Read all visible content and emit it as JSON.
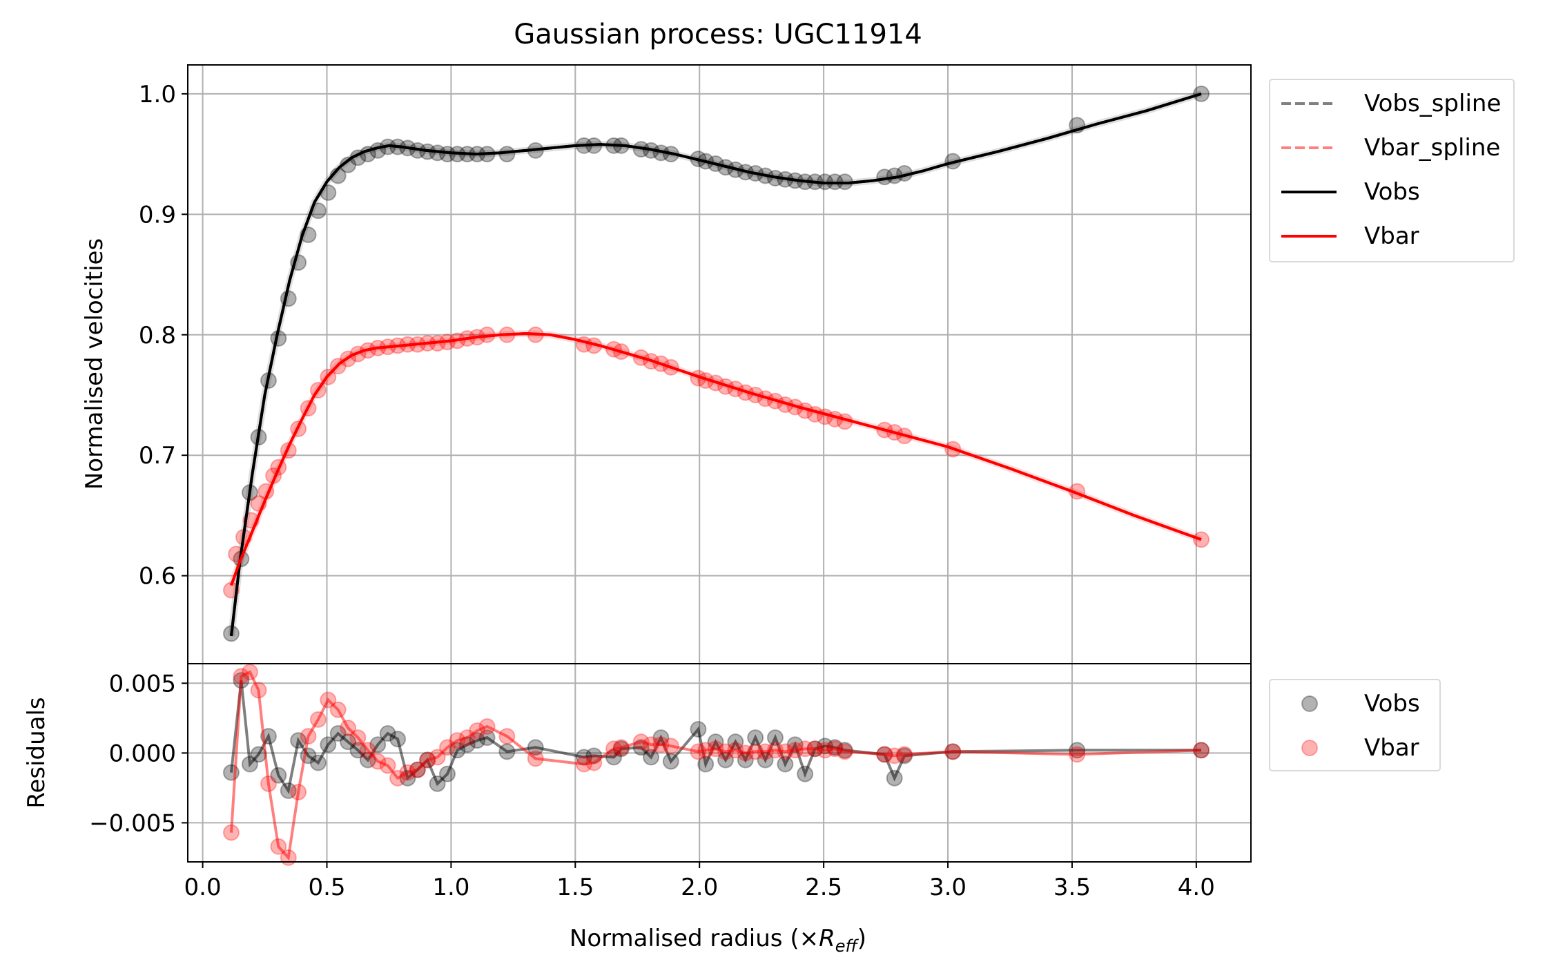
{
  "figure_title": "Gaussian process: UGC11914",
  "colors": {
    "vobs": "#000000",
    "vbar": "#ff0000",
    "vobs_spline": "#808080",
    "vbar_spline": "#ff8080",
    "grid": "#b0b0b0"
  },
  "legend_main": [
    {
      "label": "Vobs_spline",
      "style": "dashed",
      "color": "#808080"
    },
    {
      "label": "Vbar_spline",
      "style": "dashed",
      "color": "#ff8080"
    },
    {
      "label": "Vobs",
      "style": "solid",
      "color": "#000000"
    },
    {
      "label": "Vbar",
      "style": "solid",
      "color": "#ff0000"
    }
  ],
  "legend_resid": [
    {
      "label": "Vobs",
      "style": "marker",
      "color": "#000000"
    },
    {
      "label": "Vbar",
      "style": "marker",
      "color": "#ff0000"
    }
  ],
  "chart_data": [
    {
      "type": "line",
      "title": "Gaussian process: UGC11914",
      "xlabel": "",
      "ylabel": "Normalised velocities",
      "xlim": [
        -0.06,
        4.22
      ],
      "ylim": [
        0.527,
        1.024
      ],
      "xticks": [
        0.0,
        0.5,
        1.0,
        1.5,
        2.0,
        2.5,
        3.0,
        3.5,
        4.0
      ],
      "yticks": [
        0.6,
        0.7,
        0.8,
        0.9,
        1.0
      ],
      "ytick_labels": [
        "0.6",
        "0.7",
        "0.8",
        "0.9",
        "1.0"
      ],
      "grid": true,
      "legend_placement": "outside upper right",
      "series": [
        {
          "name": "Vobs",
          "kind": "points",
          "color": "#000000",
          "x": [
            0.115,
            0.155,
            0.19,
            0.225,
            0.265,
            0.305,
            0.345,
            0.385,
            0.425,
            0.465,
            0.505,
            0.545,
            0.585,
            0.625,
            0.665,
            0.705,
            0.745,
            0.785,
            0.825,
            0.865,
            0.905,
            0.945,
            0.985,
            1.025,
            1.065,
            1.105,
            1.145,
            1.225,
            1.34,
            1.535,
            1.575,
            1.655,
            1.685,
            1.765,
            1.805,
            1.845,
            1.885,
            1.995,
            2.025,
            2.065,
            2.105,
            2.145,
            2.185,
            2.225,
            2.265,
            2.305,
            2.345,
            2.385,
            2.425,
            2.465,
            2.505,
            2.545,
            2.585,
            2.745,
            2.785,
            2.825,
            3.02,
            3.52,
            4.02
          ],
          "y": [
            0.552,
            0.614,
            0.669,
            0.715,
            0.762,
            0.797,
            0.83,
            0.86,
            0.883,
            0.903,
            0.918,
            0.932,
            0.941,
            0.947,
            0.95,
            0.953,
            0.956,
            0.956,
            0.955,
            0.953,
            0.952,
            0.951,
            0.95,
            0.95,
            0.95,
            0.95,
            0.95,
            0.95,
            0.953,
            0.957,
            0.957,
            0.957,
            0.957,
            0.954,
            0.953,
            0.951,
            0.95,
            0.946,
            0.944,
            0.942,
            0.939,
            0.937,
            0.935,
            0.934,
            0.932,
            0.93,
            0.929,
            0.928,
            0.927,
            0.927,
            0.927,
            0.927,
            0.927,
            0.931,
            0.932,
            0.934,
            0.944,
            0.974,
            1.0
          ]
        },
        {
          "name": "Vbar",
          "kind": "points",
          "color": "#ff0000",
          "x": [
            0.115,
            0.135,
            0.165,
            0.195,
            0.225,
            0.255,
            0.285,
            0.305,
            0.345,
            0.385,
            0.425,
            0.465,
            0.505,
            0.545,
            0.585,
            0.625,
            0.665,
            0.705,
            0.745,
            0.785,
            0.825,
            0.865,
            0.905,
            0.945,
            0.985,
            1.025,
            1.065,
            1.105,
            1.145,
            1.225,
            1.34,
            1.535,
            1.575,
            1.655,
            1.685,
            1.765,
            1.805,
            1.845,
            1.885,
            1.995,
            2.025,
            2.065,
            2.105,
            2.145,
            2.185,
            2.225,
            2.265,
            2.305,
            2.345,
            2.385,
            2.425,
            2.465,
            2.505,
            2.545,
            2.585,
            2.745,
            2.785,
            2.825,
            3.02,
            3.52,
            4.02
          ],
          "y": [
            0.588,
            0.618,
            0.632,
            0.646,
            0.66,
            0.67,
            0.683,
            0.69,
            0.704,
            0.722,
            0.739,
            0.754,
            0.765,
            0.774,
            0.78,
            0.784,
            0.787,
            0.789,
            0.79,
            0.791,
            0.792,
            0.792,
            0.793,
            0.793,
            0.794,
            0.795,
            0.797,
            0.798,
            0.8,
            0.8,
            0.8,
            0.792,
            0.791,
            0.788,
            0.786,
            0.781,
            0.778,
            0.776,
            0.773,
            0.764,
            0.762,
            0.76,
            0.757,
            0.755,
            0.752,
            0.75,
            0.747,
            0.745,
            0.742,
            0.74,
            0.737,
            0.734,
            0.732,
            0.73,
            0.728,
            0.721,
            0.719,
            0.716,
            0.705,
            0.67,
            0.63
          ]
        },
        {
          "name": "Vobs",
          "kind": "curve",
          "color": "#000000",
          "x": [
            0.115,
            0.15,
            0.2,
            0.25,
            0.3,
            0.35,
            0.4,
            0.45,
            0.5,
            0.55,
            0.6,
            0.65,
            0.7,
            0.75,
            0.8,
            0.9,
            1.0,
            1.1,
            1.2,
            1.3,
            1.4,
            1.5,
            1.6,
            1.7,
            1.8,
            1.9,
            2.0,
            2.1,
            2.2,
            2.3,
            2.4,
            2.5,
            2.6,
            2.7,
            2.8,
            2.9,
            3.0,
            3.2,
            3.4,
            3.6,
            3.8,
            4.02
          ],
          "y": [
            0.55,
            0.612,
            0.685,
            0.75,
            0.8,
            0.845,
            0.882,
            0.91,
            0.927,
            0.939,
            0.947,
            0.952,
            0.955,
            0.957,
            0.956,
            0.953,
            0.951,
            0.95,
            0.951,
            0.953,
            0.955,
            0.957,
            0.958,
            0.957,
            0.954,
            0.95,
            0.945,
            0.94,
            0.935,
            0.931,
            0.928,
            0.926,
            0.926,
            0.928,
            0.931,
            0.936,
            0.942,
            0.952,
            0.963,
            0.975,
            0.986,
            1.0
          ]
        },
        {
          "name": "Vbar",
          "kind": "curve",
          "color": "#ff0000",
          "x": [
            0.115,
            0.15,
            0.2,
            0.25,
            0.3,
            0.35,
            0.4,
            0.45,
            0.5,
            0.55,
            0.6,
            0.65,
            0.7,
            0.8,
            0.9,
            1.0,
            1.1,
            1.2,
            1.3,
            1.4,
            1.5,
            1.6,
            1.7,
            1.8,
            1.9,
            2.0,
            2.2,
            2.4,
            2.6,
            2.8,
            3.0,
            3.25,
            3.5,
            3.75,
            4.02
          ],
          "y": [
            0.592,
            0.612,
            0.637,
            0.662,
            0.686,
            0.709,
            0.73,
            0.75,
            0.765,
            0.776,
            0.783,
            0.787,
            0.789,
            0.791,
            0.793,
            0.795,
            0.798,
            0.8,
            0.801,
            0.8,
            0.796,
            0.791,
            0.785,
            0.779,
            0.772,
            0.765,
            0.752,
            0.74,
            0.729,
            0.718,
            0.707,
            0.689,
            0.67,
            0.65,
            0.63
          ]
        }
      ]
    },
    {
      "type": "line",
      "title": "",
      "xlabel": "Normalised radius (×R_eff)",
      "ylabel": "Residuals",
      "xlim": [
        -0.06,
        4.22
      ],
      "ylim": [
        -0.0078,
        0.0064
      ],
      "xticks": [
        0.0,
        0.5,
        1.0,
        1.5,
        2.0,
        2.5,
        3.0,
        3.5,
        4.0
      ],
      "xtick_labels": [
        "0.0",
        "0.5",
        "1.0",
        "1.5",
        "2.0",
        "2.5",
        "3.0",
        "3.5",
        "4.0"
      ],
      "yticks": [
        -0.005,
        0.0,
        0.005
      ],
      "ytick_labels": [
        "−0.005",
        "0.000",
        "0.005"
      ],
      "grid": true,
      "legend_placement": "outside upper right",
      "series": [
        {
          "name": "Vobs",
          "color": "#000000",
          "x": [
            0.115,
            0.155,
            0.19,
            0.225,
            0.265,
            0.305,
            0.345,
            0.385,
            0.425,
            0.465,
            0.505,
            0.545,
            0.585,
            0.625,
            0.665,
            0.705,
            0.745,
            0.785,
            0.825,
            0.865,
            0.905,
            0.945,
            0.985,
            1.025,
            1.065,
            1.105,
            1.145,
            1.225,
            1.34,
            1.535,
            1.575,
            1.655,
            1.685,
            1.765,
            1.805,
            1.845,
            1.885,
            1.995,
            2.025,
            2.065,
            2.105,
            2.145,
            2.185,
            2.225,
            2.265,
            2.305,
            2.345,
            2.385,
            2.425,
            2.465,
            2.505,
            2.545,
            2.585,
            2.745,
            2.785,
            2.825,
            3.02,
            3.52,
            4.02
          ],
          "y": [
            -0.0014,
            0.0052,
            -0.0008,
            -0.0001,
            0.0012,
            -0.0016,
            -0.0027,
            0.0009,
            -0.0002,
            -0.0007,
            0.0006,
            0.0014,
            0.0008,
            0.0002,
            -0.0005,
            0.0006,
            0.0014,
            0.001,
            -0.0018,
            -0.0012,
            -0.0005,
            -0.0022,
            -0.0015,
            0.0002,
            0.0006,
            0.0009,
            0.0011,
            0.0001,
            0.0004,
            -0.0003,
            -0.0002,
            -0.0003,
            0.0003,
            0.0004,
            -0.0003,
            0.0011,
            -0.0006,
            0.0017,
            -0.0008,
            0.0008,
            -0.0005,
            0.0008,
            -0.0005,
            0.0011,
            -0.0005,
            0.0011,
            -0.0008,
            0.0006,
            -0.0015,
            0.0003,
            0.0005,
            0.0004,
            0.0002,
            -0.0001,
            -0.0018,
            -0.0002,
            0.0001,
            0.0002,
            0.0002
          ]
        },
        {
          "name": "Vbar",
          "color": "#ff0000",
          "x": [
            0.115,
            0.155,
            0.19,
            0.225,
            0.265,
            0.305,
            0.345,
            0.385,
            0.425,
            0.465,
            0.505,
            0.545,
            0.585,
            0.625,
            0.665,
            0.705,
            0.745,
            0.785,
            0.825,
            0.865,
            0.905,
            0.945,
            0.985,
            1.025,
            1.065,
            1.105,
            1.145,
            1.225,
            1.34,
            1.535,
            1.575,
            1.655,
            1.685,
            1.765,
            1.805,
            1.845,
            1.885,
            1.995,
            2.025,
            2.065,
            2.105,
            2.145,
            2.185,
            2.225,
            2.265,
            2.305,
            2.345,
            2.385,
            2.425,
            2.465,
            2.505,
            2.545,
            2.585,
            2.745,
            2.785,
            2.825,
            3.02,
            3.52,
            4.02
          ],
          "y": [
            -0.0057,
            0.0055,
            0.0058,
            0.0045,
            -0.0022,
            -0.0067,
            -0.0075,
            -0.0028,
            0.0012,
            0.0024,
            0.0038,
            0.0031,
            0.0018,
            0.0011,
            0.0002,
            -0.0006,
            -0.0009,
            -0.0018,
            -0.0014,
            -0.0012,
            -0.0005,
            -0.0003,
            0.0004,
            0.0009,
            0.0011,
            0.0016,
            0.0019,
            0.0012,
            -0.0004,
            -0.0008,
            -0.0007,
            0.0003,
            0.0004,
            0.0008,
            0.0006,
            0.0006,
            0.0005,
            0.0001,
            0.0002,
            0.0003,
            0.0001,
            0.0002,
            0.0,
            0.0001,
            0.0001,
            0.0002,
            0.0001,
            0.0002,
            0.0003,
            0.0003,
            0.0002,
            0.0003,
            0.0001,
            -0.0001,
            -0.0002,
            -0.0001,
            0.0001,
            -0.0001,
            0.0002
          ]
        }
      ]
    }
  ]
}
